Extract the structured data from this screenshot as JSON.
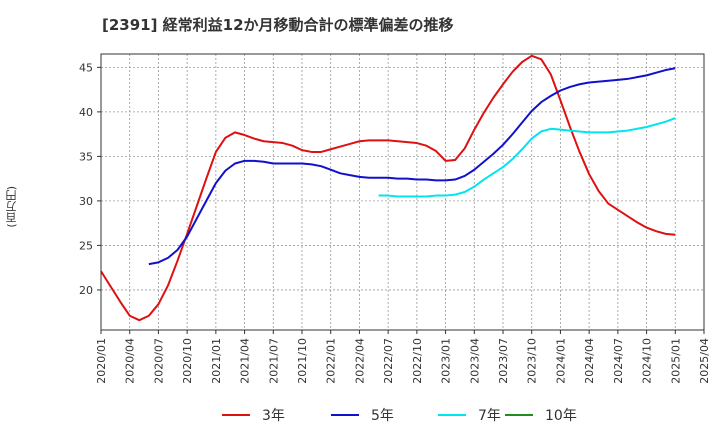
{
  "chart_data": {
    "type": "line",
    "title": "[2391]  経常利益12か月移動合計の標準偏差の推移",
    "ylabel": "(百万円)",
    "xlabel": "",
    "ylim": [
      15.5,
      46.5
    ],
    "y_ticks": [
      20,
      25,
      30,
      35,
      40,
      45
    ],
    "x_tick_labels": [
      "2020/01",
      "2020/04",
      "2020/07",
      "2020/10",
      "2021/01",
      "2021/04",
      "2021/07",
      "2021/10",
      "2022/01",
      "2022/04",
      "2022/07",
      "2022/10",
      "2023/01",
      "2023/04",
      "2023/07",
      "2023/10",
      "2024/01",
      "2024/04",
      "2024/07",
      "2024/10",
      "2025/01",
      "2025/04"
    ],
    "grid": true,
    "legend_position": "bottom",
    "series": [
      {
        "name": "3年",
        "color": "#dd1111",
        "points": [
          [
            "2020/01",
            22.1
          ],
          [
            "2020/02",
            20.4
          ],
          [
            "2020/03",
            18.7
          ],
          [
            "2020/04",
            17.1
          ],
          [
            "2020/05",
            16.6
          ],
          [
            "2020/06",
            17.1
          ],
          [
            "2020/07",
            18.4
          ],
          [
            "2020/08",
            20.5
          ],
          [
            "2020/09",
            23.3
          ],
          [
            "2020/10",
            26.3
          ],
          [
            "2020/11",
            29.4
          ],
          [
            "2020/12",
            32.5
          ],
          [
            "2021/01",
            35.5
          ],
          [
            "2021/02",
            37.1
          ],
          [
            "2021/03",
            37.7
          ],
          [
            "2021/04",
            37.4
          ],
          [
            "2021/05",
            37.0
          ],
          [
            "2021/06",
            36.7
          ],
          [
            "2021/07",
            36.6
          ],
          [
            "2021/08",
            36.5
          ],
          [
            "2021/09",
            36.2
          ],
          [
            "2021/10",
            35.7
          ],
          [
            "2021/11",
            35.5
          ],
          [
            "2021/12",
            35.5
          ],
          [
            "2022/01",
            35.8
          ],
          [
            "2022/02",
            36.1
          ],
          [
            "2022/03",
            36.4
          ],
          [
            "2022/04",
            36.7
          ],
          [
            "2022/05",
            36.8
          ],
          [
            "2022/06",
            36.8
          ],
          [
            "2022/07",
            36.8
          ],
          [
            "2022/08",
            36.7
          ],
          [
            "2022/09",
            36.6
          ],
          [
            "2022/10",
            36.5
          ],
          [
            "2022/11",
            36.2
          ],
          [
            "2022/12",
            35.6
          ],
          [
            "2023/01",
            34.5
          ],
          [
            "2023/02",
            34.6
          ],
          [
            "2023/03",
            35.9
          ],
          [
            "2023/04",
            38.0
          ],
          [
            "2023/05",
            39.9
          ],
          [
            "2023/06",
            41.6
          ],
          [
            "2023/07",
            43.1
          ],
          [
            "2023/08",
            44.5
          ],
          [
            "2023/09",
            45.6
          ],
          [
            "2023/10",
            46.3
          ],
          [
            "2023/11",
            45.9
          ],
          [
            "2023/12",
            44.2
          ],
          [
            "2024/01",
            41.3
          ],
          [
            "2024/02",
            38.3
          ],
          [
            "2024/03",
            35.5
          ],
          [
            "2024/04",
            33.0
          ],
          [
            "2024/05",
            31.1
          ],
          [
            "2024/06",
            29.7
          ],
          [
            "2024/07",
            29.0
          ],
          [
            "2024/08",
            28.3
          ],
          [
            "2024/09",
            27.6
          ],
          [
            "2024/10",
            27.0
          ],
          [
            "2024/11",
            26.6
          ],
          [
            "2024/12",
            26.3
          ],
          [
            "2025/01",
            26.2
          ]
        ]
      },
      {
        "name": "5年",
        "color": "#1111cc",
        "points": [
          [
            "2020/06",
            22.9
          ],
          [
            "2020/07",
            23.1
          ],
          [
            "2020/08",
            23.6
          ],
          [
            "2020/09",
            24.5
          ],
          [
            "2020/10",
            26.0
          ],
          [
            "2020/11",
            28.0
          ],
          [
            "2020/12",
            30.0
          ],
          [
            "2021/01",
            32.0
          ],
          [
            "2021/02",
            33.4
          ],
          [
            "2021/03",
            34.2
          ],
          [
            "2021/04",
            34.5
          ],
          [
            "2021/05",
            34.5
          ],
          [
            "2021/06",
            34.4
          ],
          [
            "2021/07",
            34.2
          ],
          [
            "2021/08",
            34.2
          ],
          [
            "2021/09",
            34.2
          ],
          [
            "2021/10",
            34.2
          ],
          [
            "2021/11",
            34.1
          ],
          [
            "2021/12",
            33.9
          ],
          [
            "2022/01",
            33.5
          ],
          [
            "2022/02",
            33.1
          ],
          [
            "2022/03",
            32.9
          ],
          [
            "2022/04",
            32.7
          ],
          [
            "2022/05",
            32.6
          ],
          [
            "2022/06",
            32.6
          ],
          [
            "2022/07",
            32.6
          ],
          [
            "2022/08",
            32.5
          ],
          [
            "2022/09",
            32.5
          ],
          [
            "2022/10",
            32.4
          ],
          [
            "2022/11",
            32.4
          ],
          [
            "2022/12",
            32.3
          ],
          [
            "2023/01",
            32.3
          ],
          [
            "2023/02",
            32.4
          ],
          [
            "2023/03",
            32.8
          ],
          [
            "2023/04",
            33.5
          ],
          [
            "2023/05",
            34.4
          ],
          [
            "2023/06",
            35.3
          ],
          [
            "2023/07",
            36.3
          ],
          [
            "2023/08",
            37.5
          ],
          [
            "2023/09",
            38.8
          ],
          [
            "2023/10",
            40.1
          ],
          [
            "2023/11",
            41.1
          ],
          [
            "2023/12",
            41.8
          ],
          [
            "2024/01",
            42.4
          ],
          [
            "2024/02",
            42.8
          ],
          [
            "2024/03",
            43.1
          ],
          [
            "2024/04",
            43.3
          ],
          [
            "2024/05",
            43.4
          ],
          [
            "2024/06",
            43.5
          ],
          [
            "2024/07",
            43.6
          ],
          [
            "2024/08",
            43.7
          ],
          [
            "2024/09",
            43.9
          ],
          [
            "2024/10",
            44.1
          ],
          [
            "2024/11",
            44.4
          ],
          [
            "2024/12",
            44.7
          ],
          [
            "2025/01",
            44.9
          ]
        ]
      },
      {
        "name": "7年",
        "color": "#00e5ee",
        "points": [
          [
            "2022/06",
            30.6
          ],
          [
            "2022/07",
            30.6
          ],
          [
            "2022/08",
            30.5
          ],
          [
            "2022/09",
            30.5
          ],
          [
            "2022/10",
            30.5
          ],
          [
            "2022/11",
            30.5
          ],
          [
            "2022/12",
            30.6
          ],
          [
            "2023/01",
            30.6
          ],
          [
            "2023/02",
            30.7
          ],
          [
            "2023/03",
            31.0
          ],
          [
            "2023/04",
            31.6
          ],
          [
            "2023/05",
            32.4
          ],
          [
            "2023/06",
            33.1
          ],
          [
            "2023/07",
            33.8
          ],
          [
            "2023/08",
            34.7
          ],
          [
            "2023/09",
            35.8
          ],
          [
            "2023/10",
            37.0
          ],
          [
            "2023/11",
            37.8
          ],
          [
            "2023/12",
            38.1
          ],
          [
            "2024/01",
            38.0
          ],
          [
            "2024/02",
            37.9
          ],
          [
            "2024/03",
            37.8
          ],
          [
            "2024/04",
            37.7
          ],
          [
            "2024/05",
            37.7
          ],
          [
            "2024/06",
            37.7
          ],
          [
            "2024/07",
            37.8
          ],
          [
            "2024/08",
            37.9
          ],
          [
            "2024/09",
            38.1
          ],
          [
            "2024/10",
            38.3
          ],
          [
            "2024/11",
            38.6
          ],
          [
            "2024/12",
            38.9
          ],
          [
            "2025/01",
            39.3
          ]
        ]
      },
      {
        "name": "10年",
        "color": "#228b22",
        "points": []
      }
    ]
  }
}
